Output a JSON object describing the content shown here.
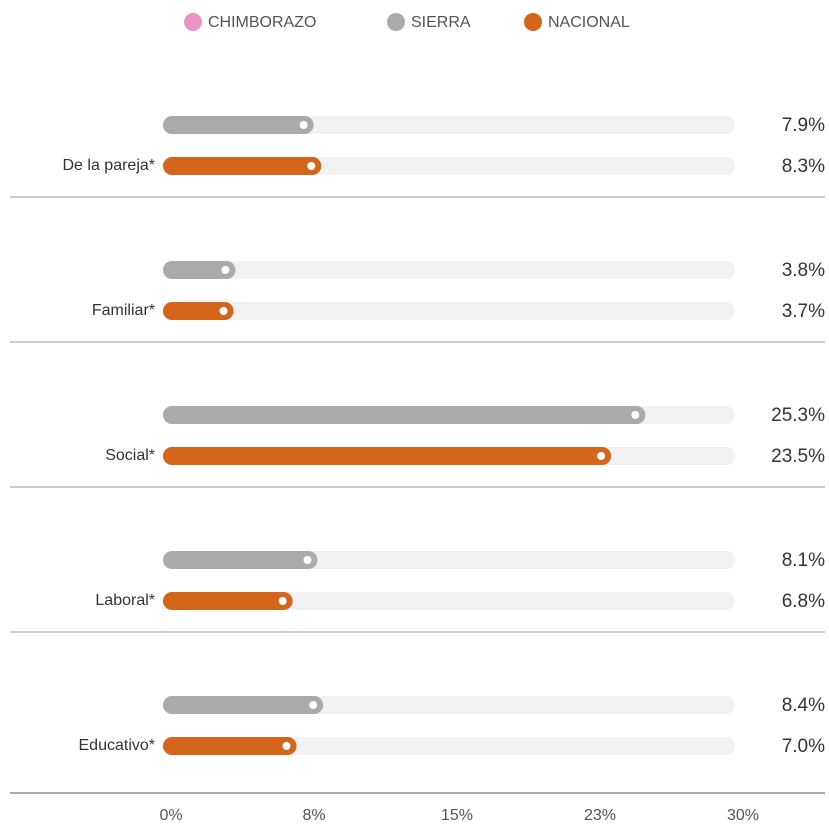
{
  "chart_data": {
    "type": "bar",
    "orientation": "horizontal",
    "categories": [
      "De la pareja*",
      "Familiar*",
      "Social*",
      "Laboral*",
      "Educativo*"
    ],
    "series": [
      {
        "name": "CHIMBORAZO",
        "color": "#ea93c4",
        "values": [
          null,
          null,
          null,
          null,
          null
        ]
      },
      {
        "name": "SIERRA",
        "color": "#aaaaaa",
        "values": [
          7.9,
          3.8,
          25.3,
          8.1,
          8.4
        ],
        "value_labels": [
          "7.9%",
          "3.8%",
          "25.3%",
          "8.1%",
          "8.4%"
        ]
      },
      {
        "name": "NACIONAL",
        "color": "#d5651b",
        "values": [
          8.3,
          3.7,
          23.5,
          6.8,
          7.0
        ],
        "value_labels": [
          "8.3%",
          "3.7%",
          "23.5%",
          "6.8%",
          "7.0%"
        ]
      }
    ],
    "xlim": [
      0,
      30
    ],
    "xticks": [
      {
        "value": 0,
        "label": "0%"
      },
      {
        "value": 7.5,
        "label": "8%"
      },
      {
        "value": 15,
        "label": "15%"
      },
      {
        "value": 22.5,
        "label": "23%"
      },
      {
        "value": 30,
        "label": "30%"
      }
    ],
    "legend": "top"
  }
}
